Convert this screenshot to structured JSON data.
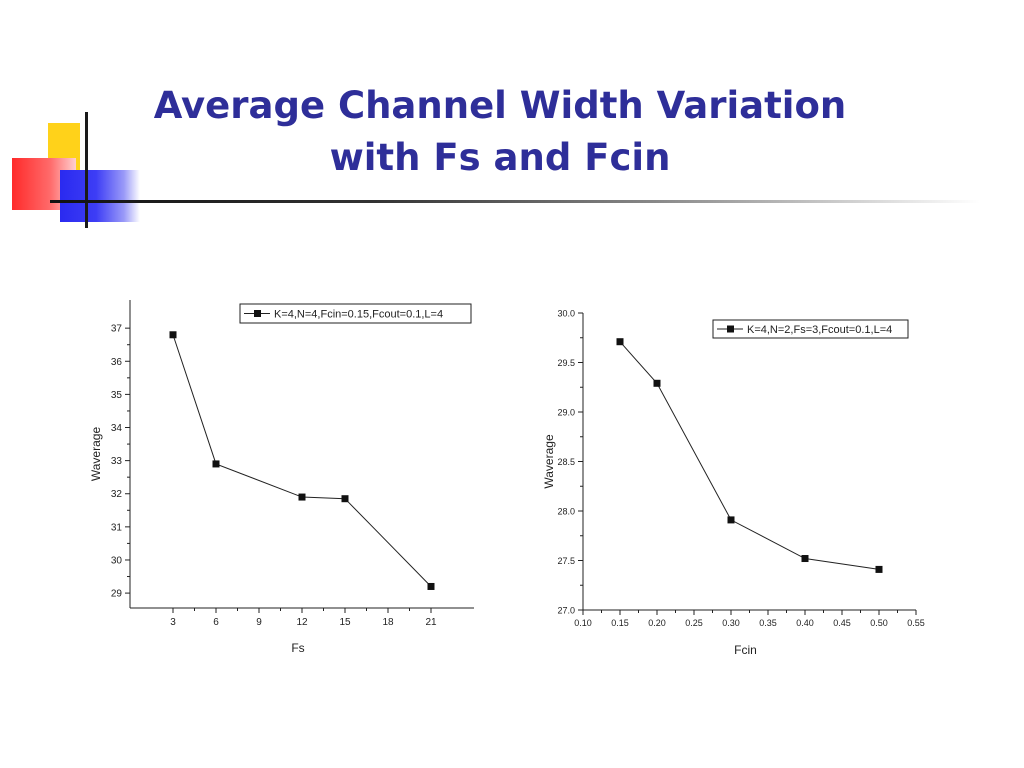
{
  "slide": {
    "title_line1": "Average Channel Width Variation",
    "title_line2": "with Fs and Fcin",
    "title_color": "#2e2e99"
  },
  "chart_data": [
    {
      "type": "line",
      "x": [
        3,
        6,
        12,
        15,
        21
      ],
      "series": [
        {
          "name": "K=4,N=4,Fcin=0.15,Fcout=0.1,L=4",
          "values": [
            36.8,
            32.9,
            31.9,
            31.85,
            29.2
          ]
        }
      ],
      "xlabel": "Fs",
      "ylabel": "Waverage",
      "xticks": [
        3,
        6,
        9,
        12,
        15,
        18,
        21
      ],
      "yticks": [
        29,
        30,
        31,
        32,
        33,
        34,
        35,
        36,
        37
      ],
      "xlim": [
        0,
        24
      ],
      "ylim": [
        28.55,
        37.85
      ],
      "legend_position": "top-right",
      "grid": false,
      "marker": "square"
    },
    {
      "type": "line",
      "x": [
        0.15,
        0.2,
        0.3,
        0.4,
        0.5
      ],
      "series": [
        {
          "name": "K=4,N=2,Fs=3,Fcout=0.1,L=4",
          "values": [
            29.71,
            29.29,
            27.91,
            27.52,
            27.41
          ]
        }
      ],
      "xlabel": "Fcin",
      "ylabel": "Waverage",
      "xticks": [
        "0.10",
        "0.15",
        "0.20",
        "0.25",
        "0.30",
        "0.35",
        "0.40",
        "0.45",
        "0.50",
        "0.55"
      ],
      "yticks": [
        "27.0",
        "27.5",
        "28.0",
        "28.5",
        "29.0",
        "29.5",
        "30.0"
      ],
      "xlim": [
        0.1,
        0.55
      ],
      "ylim": [
        27.0,
        30.0
      ],
      "legend_position": "top-right",
      "grid": false,
      "marker": "square"
    }
  ]
}
